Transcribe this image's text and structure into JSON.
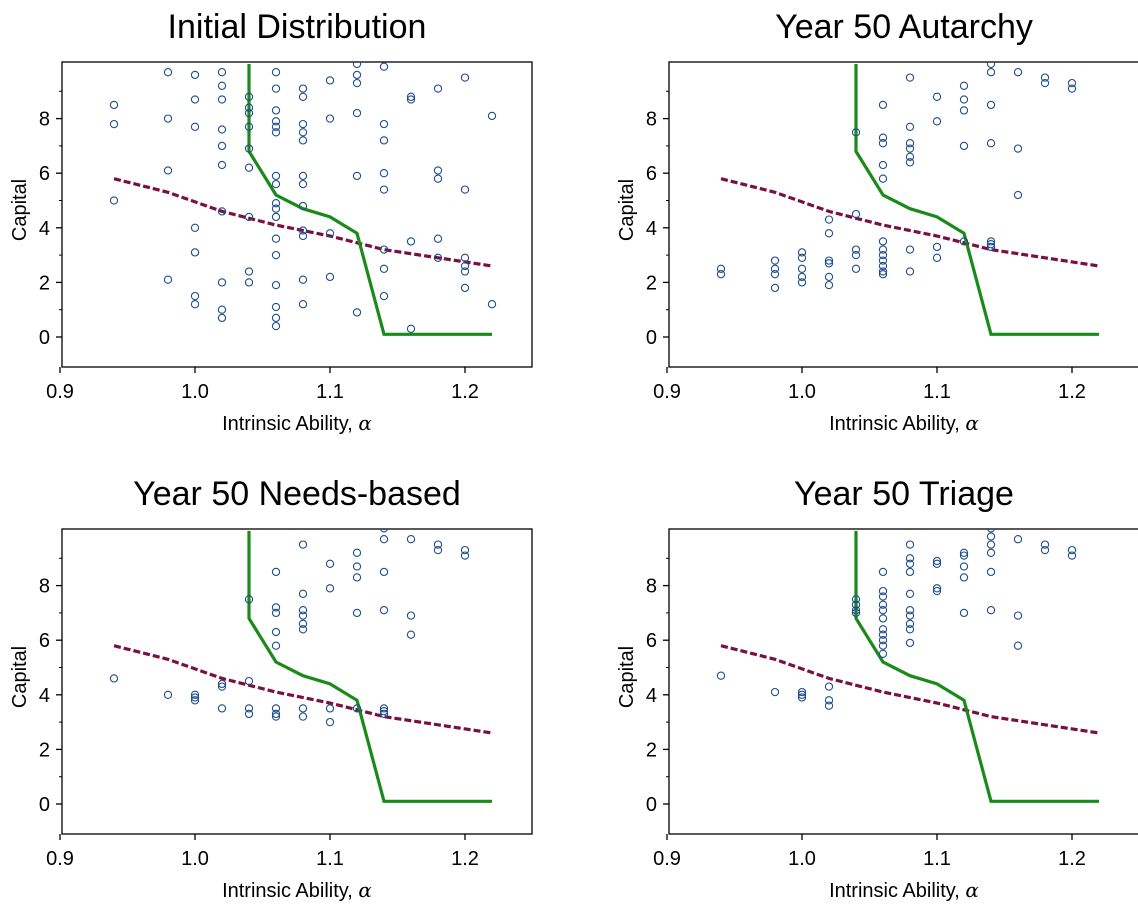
{
  "figure": {
    "xlabel_text": "Intrinsic Ability, ",
    "xlabel_symbol": "α",
    "ylabel": "Capital"
  },
  "colors": {
    "points": "#1f4e8c",
    "threshold_line": "#1a8a1a",
    "dashed_line": "#7a1040",
    "axes": "#000000"
  },
  "chart_data": [
    {
      "type": "scatter",
      "title": "Initial Distribution",
      "xlabel": "Intrinsic Ability, α",
      "ylabel": "Capital",
      "xlim": [
        0.9,
        1.25
      ],
      "ylim": [
        -1,
        10
      ],
      "xticks": [
        "0.9",
        "1.0",
        "1.1",
        "1.2"
      ],
      "yticks": [
        "0",
        "2",
        "4",
        "6",
        "8"
      ],
      "points": [
        [
          0.94,
          8.5
        ],
        [
          0.94,
          7.8
        ],
        [
          0.94,
          5.0
        ],
        [
          0.98,
          9.7
        ],
        [
          0.98,
          8.0
        ],
        [
          0.98,
          6.1
        ],
        [
          0.98,
          2.1
        ],
        [
          1.0,
          9.6
        ],
        [
          1.0,
          8.7
        ],
        [
          1.0,
          7.7
        ],
        [
          1.0,
          4.0
        ],
        [
          1.0,
          3.1
        ],
        [
          1.0,
          1.5
        ],
        [
          1.0,
          1.2
        ],
        [
          1.02,
          9.7
        ],
        [
          1.02,
          9.2
        ],
        [
          1.02,
          8.7
        ],
        [
          1.02,
          7.6
        ],
        [
          1.02,
          7.0
        ],
        [
          1.02,
          6.3
        ],
        [
          1.02,
          4.6
        ],
        [
          1.02,
          2.0
        ],
        [
          1.02,
          1.0
        ],
        [
          1.02,
          0.7
        ],
        [
          1.04,
          8.8
        ],
        [
          1.04,
          8.4
        ],
        [
          1.04,
          8.2
        ],
        [
          1.04,
          7.7
        ],
        [
          1.04,
          6.9
        ],
        [
          1.04,
          6.2
        ],
        [
          1.04,
          4.4
        ],
        [
          1.04,
          2.4
        ],
        [
          1.04,
          2.0
        ],
        [
          1.06,
          9.7
        ],
        [
          1.06,
          9.1
        ],
        [
          1.06,
          8.3
        ],
        [
          1.06,
          7.9
        ],
        [
          1.06,
          7.7
        ],
        [
          1.06,
          7.5
        ],
        [
          1.06,
          5.9
        ],
        [
          1.06,
          5.6
        ],
        [
          1.06,
          4.9
        ],
        [
          1.06,
          4.7
        ],
        [
          1.06,
          4.4
        ],
        [
          1.06,
          3.6
        ],
        [
          1.06,
          3.0
        ],
        [
          1.06,
          1.9
        ],
        [
          1.06,
          1.1
        ],
        [
          1.06,
          0.7
        ],
        [
          1.06,
          0.4
        ],
        [
          1.08,
          9.1
        ],
        [
          1.08,
          8.8
        ],
        [
          1.08,
          7.8
        ],
        [
          1.08,
          7.5
        ],
        [
          1.08,
          7.2
        ],
        [
          1.08,
          5.9
        ],
        [
          1.08,
          5.6
        ],
        [
          1.08,
          4.8
        ],
        [
          1.08,
          3.9
        ],
        [
          1.08,
          3.7
        ],
        [
          1.08,
          2.1
        ],
        [
          1.08,
          1.2
        ],
        [
          1.1,
          9.4
        ],
        [
          1.1,
          8.0
        ],
        [
          1.1,
          3.8
        ],
        [
          1.1,
          2.2
        ],
        [
          1.12,
          10.0
        ],
        [
          1.12,
          9.6
        ],
        [
          1.12,
          9.3
        ],
        [
          1.12,
          8.2
        ],
        [
          1.12,
          5.9
        ],
        [
          1.12,
          0.9
        ],
        [
          1.14,
          9.9
        ],
        [
          1.14,
          7.8
        ],
        [
          1.14,
          7.2
        ],
        [
          1.14,
          6.0
        ],
        [
          1.14,
          5.4
        ],
        [
          1.14,
          3.2
        ],
        [
          1.14,
          2.5
        ],
        [
          1.14,
          1.5
        ],
        [
          1.16,
          8.8
        ],
        [
          1.16,
          8.7
        ],
        [
          1.16,
          3.5
        ],
        [
          1.16,
          0.3
        ],
        [
          1.18,
          9.1
        ],
        [
          1.18,
          6.1
        ],
        [
          1.18,
          5.8
        ],
        [
          1.18,
          3.6
        ],
        [
          1.18,
          2.9
        ],
        [
          1.2,
          9.5
        ],
        [
          1.2,
          5.4
        ],
        [
          1.2,
          2.9
        ],
        [
          1.2,
          2.6
        ],
        [
          1.2,
          2.4
        ],
        [
          1.2,
          1.8
        ],
        [
          1.22,
          8.1
        ],
        [
          1.22,
          1.2
        ]
      ]
    },
    {
      "type": "scatter",
      "title": "Year 50 Autarchy",
      "xlabel": "Intrinsic Ability, α",
      "ylabel": "Capital",
      "xlim": [
        0.9,
        1.25
      ],
      "ylim": [
        -1,
        10
      ],
      "xticks": [
        "0.9",
        "1.0",
        "1.1",
        "1.2"
      ],
      "yticks": [
        "0",
        "2",
        "4",
        "6",
        "8"
      ],
      "points": [
        [
          0.94,
          2.5
        ],
        [
          0.94,
          2.3
        ],
        [
          0.98,
          2.8
        ],
        [
          0.98,
          2.5
        ],
        [
          0.98,
          2.3
        ],
        [
          0.98,
          1.8
        ],
        [
          1.0,
          3.1
        ],
        [
          1.0,
          2.9
        ],
        [
          1.0,
          2.5
        ],
        [
          1.0,
          2.2
        ],
        [
          1.0,
          2.0
        ],
        [
          1.02,
          4.3
        ],
        [
          1.02,
          3.8
        ],
        [
          1.02,
          2.8
        ],
        [
          1.02,
          2.7
        ],
        [
          1.02,
          2.2
        ],
        [
          1.02,
          1.9
        ],
        [
          1.04,
          7.5
        ],
        [
          1.04,
          4.5
        ],
        [
          1.04,
          3.2
        ],
        [
          1.04,
          3.0
        ],
        [
          1.04,
          2.5
        ],
        [
          1.06,
          8.5
        ],
        [
          1.06,
          7.3
        ],
        [
          1.06,
          7.1
        ],
        [
          1.06,
          6.3
        ],
        [
          1.06,
          5.8
        ],
        [
          1.06,
          3.5
        ],
        [
          1.06,
          3.2
        ],
        [
          1.06,
          3.0
        ],
        [
          1.06,
          2.8
        ],
        [
          1.06,
          2.6
        ],
        [
          1.06,
          2.4
        ],
        [
          1.06,
          2.3
        ],
        [
          1.08,
          9.5
        ],
        [
          1.08,
          7.7
        ],
        [
          1.08,
          7.1
        ],
        [
          1.08,
          6.9
        ],
        [
          1.08,
          6.6
        ],
        [
          1.08,
          6.4
        ],
        [
          1.08,
          3.2
        ],
        [
          1.08,
          2.4
        ],
        [
          1.1,
          8.8
        ],
        [
          1.1,
          7.9
        ],
        [
          1.1,
          3.3
        ],
        [
          1.1,
          2.9
        ],
        [
          1.12,
          9.2
        ],
        [
          1.12,
          8.7
        ],
        [
          1.12,
          8.3
        ],
        [
          1.12,
          7.0
        ],
        [
          1.12,
          3.5
        ],
        [
          1.14,
          10.0
        ],
        [
          1.14,
          9.7
        ],
        [
          1.14,
          8.5
        ],
        [
          1.14,
          7.1
        ],
        [
          1.14,
          3.5
        ],
        [
          1.14,
          3.4
        ],
        [
          1.14,
          3.3
        ],
        [
          1.16,
          9.7
        ],
        [
          1.16,
          6.9
        ],
        [
          1.16,
          5.2
        ],
        [
          1.18,
          9.5
        ],
        [
          1.18,
          9.3
        ],
        [
          1.2,
          9.3
        ],
        [
          1.2,
          9.1
        ]
      ]
    },
    {
      "type": "scatter",
      "title": "Year 50 Needs-based",
      "xlabel": "Intrinsic Ability, α",
      "ylabel": "Capital",
      "xlim": [
        0.9,
        1.25
      ],
      "ylim": [
        -1,
        10
      ],
      "xticks": [
        "0.9",
        "1.0",
        "1.1",
        "1.2"
      ],
      "yticks": [
        "0",
        "2",
        "4",
        "6",
        "8"
      ],
      "points": [
        [
          0.94,
          4.6
        ],
        [
          0.98,
          4.0
        ],
        [
          1.0,
          4.0
        ],
        [
          1.0,
          3.9
        ],
        [
          1.0,
          3.8
        ],
        [
          1.02,
          4.4
        ],
        [
          1.02,
          4.3
        ],
        [
          1.02,
          3.5
        ],
        [
          1.04,
          7.5
        ],
        [
          1.04,
          4.5
        ],
        [
          1.04,
          3.5
        ],
        [
          1.04,
          3.3
        ],
        [
          1.06,
          8.5
        ],
        [
          1.06,
          7.2
        ],
        [
          1.06,
          7.0
        ],
        [
          1.06,
          6.3
        ],
        [
          1.06,
          5.8
        ],
        [
          1.06,
          3.5
        ],
        [
          1.06,
          3.3
        ],
        [
          1.06,
          3.2
        ],
        [
          1.08,
          9.5
        ],
        [
          1.08,
          7.7
        ],
        [
          1.08,
          7.1
        ],
        [
          1.08,
          6.9
        ],
        [
          1.08,
          6.6
        ],
        [
          1.08,
          6.4
        ],
        [
          1.08,
          3.5
        ],
        [
          1.08,
          3.2
        ],
        [
          1.1,
          8.8
        ],
        [
          1.1,
          7.9
        ],
        [
          1.1,
          3.5
        ],
        [
          1.1,
          3.0
        ],
        [
          1.12,
          9.2
        ],
        [
          1.12,
          8.7
        ],
        [
          1.12,
          8.3
        ],
        [
          1.12,
          7.0
        ],
        [
          1.12,
          3.5
        ],
        [
          1.14,
          10.1
        ],
        [
          1.14,
          9.7
        ],
        [
          1.14,
          8.5
        ],
        [
          1.14,
          7.1
        ],
        [
          1.14,
          3.5
        ],
        [
          1.14,
          3.4
        ],
        [
          1.14,
          3.3
        ],
        [
          1.16,
          9.7
        ],
        [
          1.16,
          6.9
        ],
        [
          1.16,
          6.2
        ],
        [
          1.18,
          9.5
        ],
        [
          1.18,
          9.3
        ],
        [
          1.2,
          9.3
        ],
        [
          1.2,
          9.1
        ]
      ]
    },
    {
      "type": "scatter",
      "title": "Year 50 Triage",
      "xlabel": "Intrinsic Ability, α",
      "ylabel": "Capital",
      "xlim": [
        0.9,
        1.25
      ],
      "ylim": [
        -1,
        10
      ],
      "xticks": [
        "0.9",
        "1.0",
        "1.1",
        "1.2"
      ],
      "yticks": [
        "0",
        "2",
        "4",
        "6",
        "8"
      ],
      "points": [
        [
          0.94,
          4.7
        ],
        [
          0.98,
          4.1
        ],
        [
          1.0,
          4.1
        ],
        [
          1.0,
          4.0
        ],
        [
          1.0,
          3.9
        ],
        [
          1.02,
          4.3
        ],
        [
          1.02,
          3.8
        ],
        [
          1.02,
          3.6
        ],
        [
          1.04,
          7.5
        ],
        [
          1.04,
          7.3
        ],
        [
          1.04,
          7.1
        ],
        [
          1.04,
          7.0
        ],
        [
          1.06,
          8.5
        ],
        [
          1.06,
          7.8
        ],
        [
          1.06,
          7.6
        ],
        [
          1.06,
          7.3
        ],
        [
          1.06,
          7.1
        ],
        [
          1.06,
          6.8
        ],
        [
          1.06,
          6.4
        ],
        [
          1.06,
          6.2
        ],
        [
          1.06,
          6.0
        ],
        [
          1.06,
          5.8
        ],
        [
          1.06,
          5.5
        ],
        [
          1.08,
          9.5
        ],
        [
          1.08,
          9.0
        ],
        [
          1.08,
          8.8
        ],
        [
          1.08,
          8.5
        ],
        [
          1.08,
          7.7
        ],
        [
          1.08,
          7.1
        ],
        [
          1.08,
          6.9
        ],
        [
          1.08,
          6.6
        ],
        [
          1.08,
          6.4
        ],
        [
          1.08,
          5.9
        ],
        [
          1.1,
          8.9
        ],
        [
          1.1,
          8.8
        ],
        [
          1.1,
          7.9
        ],
        [
          1.1,
          7.8
        ],
        [
          1.12,
          9.2
        ],
        [
          1.12,
          9.1
        ],
        [
          1.12,
          8.7
        ],
        [
          1.12,
          8.3
        ],
        [
          1.12,
          7.0
        ],
        [
          1.14,
          10.1
        ],
        [
          1.14,
          9.8
        ],
        [
          1.14,
          9.5
        ],
        [
          1.14,
          9.2
        ],
        [
          1.14,
          8.5
        ],
        [
          1.14,
          7.1
        ],
        [
          1.16,
          9.7
        ],
        [
          1.16,
          6.9
        ],
        [
          1.16,
          5.8
        ],
        [
          1.18,
          9.5
        ],
        [
          1.18,
          9.3
        ],
        [
          1.2,
          9.3
        ],
        [
          1.2,
          9.1
        ]
      ]
    }
  ],
  "reference_lines": {
    "threshold_solid": [
      [
        1.04,
        10.0
      ],
      [
        1.04,
        6.8
      ],
      [
        1.06,
        5.2
      ],
      [
        1.08,
        4.7
      ],
      [
        1.1,
        4.4
      ],
      [
        1.12,
        3.8
      ],
      [
        1.14,
        0.1
      ],
      [
        1.22,
        0.1
      ]
    ],
    "dashed": [
      [
        0.94,
        5.8
      ],
      [
        0.98,
        5.3
      ],
      [
        1.02,
        4.6
      ],
      [
        1.06,
        4.1
      ],
      [
        1.1,
        3.7
      ],
      [
        1.14,
        3.2
      ],
      [
        1.18,
        2.9
      ],
      [
        1.22,
        2.6
      ]
    ]
  }
}
